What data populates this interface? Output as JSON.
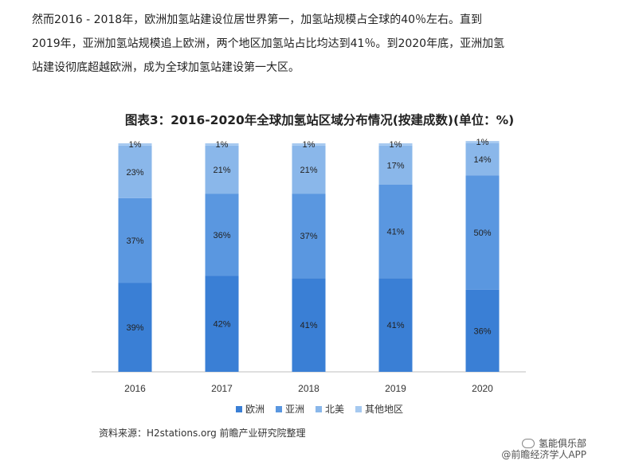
{
  "intro": {
    "lines": [
      "然而2016 - 2018年，欧洲加氢站建设位居世界第一，加氢站规模占全球的40％左右。直到",
      "2019年，亚洲加氢站规模追上欧洲，两个地区加氢站占比均达到41％。到2020年底，亚洲加氢",
      "站建设彻底超越欧洲，成为全球加氢站建设第一大区。"
    ]
  },
  "chart_data": {
    "type": "bar",
    "stacked": true,
    "title": "图表3：2016-2020年全球加氢站区域分布情况(按建成数)(单位：%)",
    "categories": [
      "2016",
      "2017",
      "2018",
      "2019",
      "2020"
    ],
    "series": [
      {
        "name": "欧洲",
        "values": [
          39,
          42,
          41,
          41,
          36
        ],
        "color": "#3a7fd5"
      },
      {
        "name": "亚洲",
        "values": [
          37,
          36,
          37,
          41,
          50
        ],
        "color": "#5a97e0"
      },
      {
        "name": "北美",
        "values": [
          23,
          21,
          21,
          17,
          14
        ],
        "color": "#8ab7ea"
      },
      {
        "name": "其他地区",
        "values": [
          1,
          1,
          1,
          1,
          1
        ],
        "color": "#a6c9f0"
      }
    ],
    "ylim": [
      0,
      100
    ],
    "value_suffix": "%",
    "legend_position": "bottom",
    "grid": false
  },
  "source": "资料来源：H2stations.org 前瞻产业研究院整理",
  "watermark": {
    "line1": "氢能俱乐部",
    "line2": "@前瞻经济学人APP"
  }
}
